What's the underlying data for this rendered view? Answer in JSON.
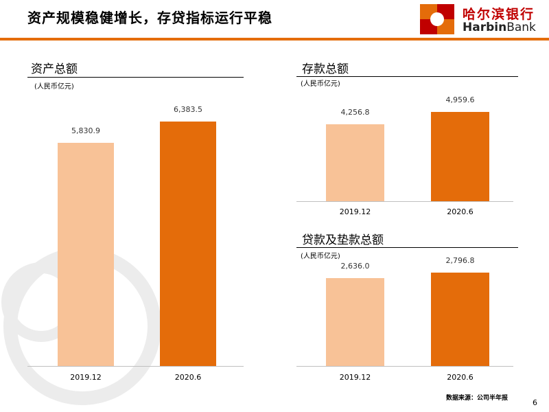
{
  "title": "资产规模稳健增长，存贷指标运行平稳",
  "logo": {
    "cn": "哈尔滨银行",
    "en_bold": "Harbin",
    "en_regular": "Bank"
  },
  "colors": {
    "accent": "#E46C0A",
    "light_bar": "#F8C297",
    "dark_bar": "#E46C0A"
  },
  "chart_data": [
    {
      "type": "bar",
      "title": "资产总额",
      "unit": "(人民币亿元)",
      "categories": [
        "2019.12",
        "2020.6"
      ],
      "values": [
        5830.9,
        6383.5
      ],
      "value_labels": [
        "5,830.9",
        "6,383.5"
      ],
      "ylim": [
        0,
        6383.5
      ]
    },
    {
      "type": "bar",
      "title": "存款总额",
      "unit": "(人民币亿元)",
      "categories": [
        "2019.12",
        "2020.6"
      ],
      "values": [
        4256.8,
        4959.6
      ],
      "value_labels": [
        "4,256.8",
        "4,959.6"
      ],
      "ylim": [
        0,
        4959.6
      ]
    },
    {
      "type": "bar",
      "title": "贷款及垫款总额",
      "unit": "(人民币亿元)",
      "categories": [
        "2019.12",
        "2020.6"
      ],
      "values": [
        2636.0,
        2796.8
      ],
      "value_labels": [
        "2,636.0",
        "2,796.8"
      ],
      "ylim": [
        0,
        2796.8
      ]
    }
  ],
  "footer": {
    "source": "数据来源：公司半年报",
    "page": "6"
  }
}
